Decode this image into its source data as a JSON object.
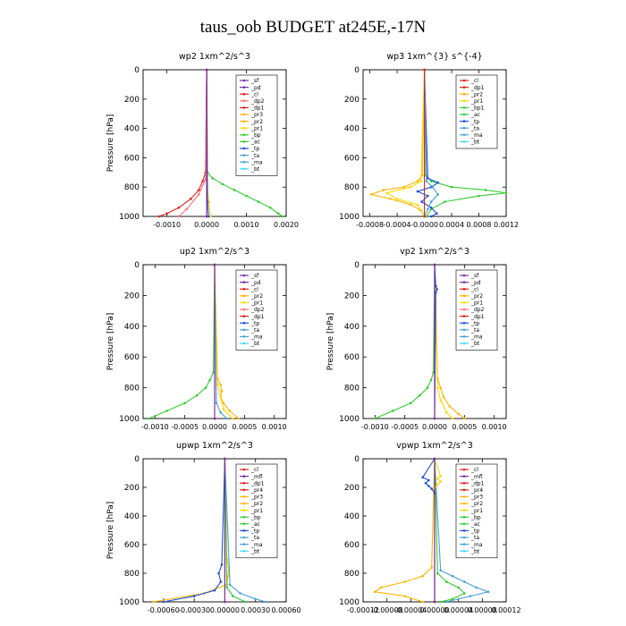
{
  "figure_title": "taus_oob  BUDGET at245E,-17N",
  "colors": {
    "sf": "#7a2ea6",
    "pd": "#7a2ea6",
    "cl": "#e0201a",
    "dp1": "#e0201a",
    "dp2": "#ff7070",
    "pr1": "#ffd700",
    "pr2": "#ffb300",
    "pr3": "#ffb300",
    "pr4": "#e0201a",
    "mt": "#7a2ea6",
    "bp": "#33cc33",
    "ac": "#33cc33",
    "tp": "#1e50d8",
    "ta": "#4aa0d8",
    "ma": "#4aa0d8",
    "bt": "#40d8ff"
  },
  "chart_data": [
    {
      "type": "line",
      "title": "wp2  1xm^2/s^3",
      "ylabel": "Pressure [hPa]",
      "ylim": [
        1000,
        0
      ],
      "yticks": [
        0,
        200,
        400,
        600,
        800,
        1000
      ],
      "xlim": [
        -0.0016,
        0.002
      ],
      "xticks": [
        "-0.0010",
        "0.0000",
        "0.0010",
        "0.0020"
      ],
      "xtick_values": [
        -0.001,
        0,
        0.001,
        0.002
      ],
      "legend": [
        "_sf",
        "_pd",
        "_cl",
        "_dp2",
        "_dp1",
        "_pr3",
        "_pr2",
        "_pr1",
        "_bp",
        "_ac",
        "_tp",
        "_ta",
        "_ma",
        "_bt"
      ],
      "legend_keys": [
        "sf",
        "pd",
        "cl",
        "dp2",
        "dp1",
        "pr3",
        "pr2",
        "pr1",
        "bp",
        "ac",
        "tp",
        "ta",
        "ma",
        "bt"
      ],
      "series": [
        {
          "key": "bp",
          "p": [
            0,
            700,
            740,
            780,
            820,
            860,
            900,
            940,
            980,
            1000
          ],
          "v": [
            0,
            2e-05,
            0.00015,
            0.0004,
            0.0007,
            0.001,
            0.0013,
            0.0016,
            0.0018,
            0.0019
          ]
        },
        {
          "key": "dp1",
          "p": [
            0,
            700,
            760,
            820,
            880,
            940,
            980,
            1000
          ],
          "v": [
            0,
            -3e-05,
            -0.0001,
            -0.0002,
            -0.0004,
            -0.0007,
            -0.001,
            -0.0012
          ]
        },
        {
          "key": "dp2",
          "p": [
            0,
            750,
            850,
            950,
            1000
          ],
          "v": [
            0,
            -3e-05,
            -0.0002,
            -0.0005,
            -0.0007
          ]
        },
        {
          "key": "pr1",
          "p": [
            0,
            800,
            900,
            1000
          ],
          "v": [
            0,
            2e-05,
            5e-05,
            0.0001
          ]
        },
        {
          "key": "tp",
          "p": [
            0,
            900,
            1000
          ],
          "v": [
            0,
            2e-05,
            5e-05
          ]
        },
        {
          "key": "cl",
          "p": [
            0,
            1000
          ],
          "v": [
            0,
            0
          ]
        },
        {
          "key": "sf",
          "p": [
            0,
            1000
          ],
          "v": [
            0,
            0
          ]
        }
      ]
    },
    {
      "type": "line",
      "title": "wp3  1xm^{3} s^{-4}",
      "ylabel": "",
      "ylim": [
        1000,
        0
      ],
      "yticks": [
        0,
        200,
        400,
        600,
        800,
        1000
      ],
      "xlim": [
        -0.0009,
        0.0012
      ],
      "xticks": [
        "-0.0008",
        "-0.0004",
        "-0.0000",
        "0.0004",
        "0.0008",
        "0.0012"
      ],
      "xtick_values": [
        -0.0008,
        -0.0004,
        0,
        0.0004,
        0.0008,
        0.0012
      ],
      "legend": [
        "_cl",
        "_dp1",
        "_pr2",
        "_pr1",
        "_bp1",
        "_ac",
        "_tp",
        "_ta",
        "_ma",
        "_bt"
      ],
      "legend_keys": [
        "cl",
        "dp1",
        "pr2",
        "pr1",
        "bp",
        "ac",
        "tp",
        "ta",
        "ma",
        "bt"
      ],
      "series": [
        {
          "key": "ac",
          "p": [
            0,
            720,
            760,
            800,
            820,
            840,
            860,
            900,
            950,
            1000
          ],
          "v": [
            0,
            2e-05,
            0.0001,
            0.0004,
            0.0009,
            0.0012,
            0.0008,
            0.0003,
            0.0001,
            3e-05
          ]
        },
        {
          "key": "pr2",
          "p": [
            0,
            720,
            760,
            800,
            820,
            850,
            880,
            920,
            960,
            1000
          ],
          "v": [
            0,
            -3e-05,
            -0.0001,
            -0.0003,
            -0.0006,
            -0.00078,
            -0.0005,
            -0.0002,
            -5e-05,
            0
          ]
        },
        {
          "key": "pr1",
          "p": [
            0,
            760,
            800,
            840,
            880,
            920,
            1000
          ],
          "v": [
            0,
            -5e-05,
            -0.0002,
            -0.00055,
            -0.0004,
            -0.0001,
            0
          ]
        },
        {
          "key": "tp",
          "p": [
            0,
            740,
            770,
            800,
            830,
            860,
            900,
            940,
            980,
            1000
          ],
          "v": [
            0,
            5e-05,
            0.0002,
            0.0001,
            -0.0001,
            5e-05,
            -4e-05,
            0.0001,
            0.00018,
            0.0001
          ]
        },
        {
          "key": "ma",
          "p": [
            0,
            760,
            800,
            850,
            900,
            950,
            1000
          ],
          "v": [
            0,
            3e-05,
            0.00012,
            0.0002,
            0.0001,
            5e-05,
            0
          ]
        },
        {
          "key": "cl",
          "p": [
            0,
            1000
          ],
          "v": [
            0,
            0
          ]
        }
      ]
    },
    {
      "type": "line",
      "title": "up2  1xm^2/s^3",
      "ylabel": "Pressure [hPa]",
      "ylim": [
        1000,
        0
      ],
      "yticks": [
        0,
        200,
        400,
        600,
        800,
        1000
      ],
      "xlim": [
        -0.0012,
        0.0012
      ],
      "xticks": [
        "-0.0010",
        "-0.0005",
        "0.0000",
        "0.0005",
        "0.0010"
      ],
      "xtick_values": [
        -0.001,
        -0.0005,
        0,
        0.0005,
        0.001
      ],
      "legend": [
        "_sf",
        "_pd",
        "_cl",
        "_pr2",
        "_pr1",
        "_dp2",
        "_dp1",
        "_tp",
        "_ta",
        "_ma",
        "_bt"
      ],
      "legend_keys": [
        "sf",
        "pd",
        "cl",
        "pr2",
        "pr1",
        "dp2",
        "dp1",
        "tp",
        "ta",
        "ma",
        "bt"
      ],
      "series": [
        {
          "key": "bp",
          "p": [
            0,
            700,
            750,
            800,
            850,
            900,
            950,
            1000
          ],
          "v": [
            0,
            -2e-05,
            -8e-05,
            -0.00015,
            -0.0003,
            -0.0005,
            -0.0008,
            -0.0011
          ]
        },
        {
          "key": "pr2",
          "p": [
            0,
            740,
            780,
            820,
            860,
            900,
            950,
            1000
          ],
          "v": [
            0,
            5e-05,
            0.0001,
            0.00012,
            0.0001,
            0.00015,
            0.00025,
            0.0004
          ]
        },
        {
          "key": "pr1",
          "p": [
            0,
            780,
            860,
            940,
            1000
          ],
          "v": [
            0,
            5e-05,
            0.0001,
            0.00015,
            0.0003
          ]
        },
        {
          "key": "ta",
          "p": [
            0,
            900,
            960,
            1000
          ],
          "v": [
            0,
            3e-05,
            0.0001,
            0.0002
          ]
        },
        {
          "key": "dp1",
          "p": [
            0,
            1000
          ],
          "v": [
            0,
            0
          ]
        },
        {
          "key": "sf",
          "p": [
            0,
            1000
          ],
          "v": [
            0,
            0
          ]
        }
      ]
    },
    {
      "type": "line",
      "title": "vp2  1xm^2/s^3",
      "ylabel": "Pressure [hPa]",
      "ylim": [
        1000,
        0
      ],
      "yticks": [
        0,
        200,
        400,
        600,
        800,
        1000
      ],
      "xlim": [
        -0.0012,
        0.0012
      ],
      "xticks": [
        "-0.0010",
        "-0.0005",
        "0.0000",
        "0.0005",
        "0.0010"
      ],
      "xtick_values": [
        -0.001,
        -0.0005,
        0,
        0.0005,
        0.001
      ],
      "legend": [
        "_sf",
        "_pd",
        "_cl",
        "_pr2",
        "_pr1",
        "_dp2",
        "_dp1",
        "_tp",
        "_ta",
        "_ma",
        "_bt"
      ],
      "legend_keys": [
        "sf",
        "pd",
        "cl",
        "pr2",
        "pr1",
        "dp2",
        "dp1",
        "tp",
        "ta",
        "ma",
        "bt"
      ],
      "series": [
        {
          "key": "bp",
          "p": [
            0,
            700,
            750,
            800,
            850,
            900,
            950,
            1000
          ],
          "v": [
            0,
            -2e-05,
            -6e-05,
            -0.00012,
            -0.00025,
            -0.0004,
            -0.0007,
            -0.001
          ]
        },
        {
          "key": "pr2",
          "p": [
            0,
            740,
            800,
            860,
            920,
            970,
            1000
          ],
          "v": [
            0,
            5e-05,
            0.0001,
            0.00015,
            0.00025,
            0.0004,
            0.0005
          ]
        },
        {
          "key": "pr1",
          "p": [
            0,
            800,
            880,
            960,
            1000
          ],
          "v": [
            0,
            5e-05,
            0.0001,
            0.0002,
            0.0003
          ]
        },
        {
          "key": "tp",
          "p": [
            0,
            140,
            160,
            180,
            1000
          ],
          "v": [
            0,
            2e-05,
            4e-05,
            2e-05,
            0
          ]
        },
        {
          "key": "dp1",
          "p": [
            0,
            1000
          ],
          "v": [
            0,
            0
          ]
        },
        {
          "key": "sf",
          "p": [
            0,
            1000
          ],
          "v": [
            0,
            0
          ]
        }
      ]
    },
    {
      "type": "line",
      "title": "upwp  1xm^2/s^3",
      "ylabel": "Pressure [hPa]",
      "ylim": [
        1000,
        0
      ],
      "yticks": [
        0,
        200,
        400,
        600,
        800,
        1000
      ],
      "xlim": [
        -0.0008,
        0.0006
      ],
      "xticks": [
        "-0.00060",
        "-0.00030",
        "0.00000",
        "0.00030",
        "0.00060"
      ],
      "xtick_values": [
        -0.0006,
        -0.0003,
        0,
        0.0003,
        0.0006
      ],
      "legend": [
        "_cl",
        "_mfl",
        "_dp1",
        "_pr4",
        "_pr3",
        "_pr2",
        "_pr1",
        "_bp",
        "_ac",
        "_tp",
        "_ta",
        "_ma",
        "_bt"
      ],
      "legend_keys": [
        "cl",
        "mt",
        "dp1",
        "pr4",
        "pr3",
        "pr2",
        "pr1",
        "bp",
        "ac",
        "tp",
        "ta",
        "ma",
        "bt"
      ],
      "series": [
        {
          "key": "pr2",
          "p": [
            0,
            700,
            760,
            820,
            880,
            940,
            1000
          ],
          "v": [
            0,
            2e-05,
            4e-05,
            3e-05,
            2e-05,
            -0.0002,
            -0.0007
          ]
        },
        {
          "key": "tp",
          "p": [
            0,
            740,
            800,
            860,
            920,
            960,
            1000
          ],
          "v": [
            0,
            -3e-05,
            -6e-05,
            -4e-05,
            -0.0001,
            -0.0003,
            -0.0006
          ]
        },
        {
          "key": "ta",
          "p": [
            0,
            880,
            940,
            980,
            1000
          ],
          "v": [
            0,
            5e-05,
            0.00015,
            0.0003,
            0.0004
          ]
        },
        {
          "key": "bp",
          "p": [
            0,
            900,
            960,
            1000
          ],
          "v": [
            0,
            2e-05,
            8e-05,
            0.0002
          ]
        },
        {
          "key": "cl",
          "p": [
            0,
            1000
          ],
          "v": [
            0,
            0
          ]
        },
        {
          "key": "sf",
          "p": [
            0,
            1000
          ],
          "v": [
            0,
            0
          ]
        }
      ]
    },
    {
      "type": "line",
      "title": "vpwp  1xm^2/s^3",
      "ylabel": "",
      "ylim": [
        1000,
        0
      ],
      "yticks": [
        0,
        200,
        400,
        600,
        800,
        1000
      ],
      "xlim": [
        -0.00012,
        0.00012
      ],
      "xticks": [
        "-0.00012",
        "-0.00008",
        "-0.00004",
        "0.00000",
        "0.00004",
        "0.00008",
        "0.00012"
      ],
      "xtick_values": [
        -0.00012,
        -8e-05,
        -4e-05,
        0,
        4e-05,
        8e-05,
        0.00012
      ],
      "legend": [
        "_cl",
        "_mfl",
        "_dp1",
        "_pr4",
        "_pr3",
        "_pr2",
        "_pr1",
        "_bp",
        "_ac",
        "_tp",
        "_ta",
        "_ma",
        "_bt"
      ],
      "legend_keys": [
        "cl",
        "mt",
        "dp1",
        "pr4",
        "pr3",
        "pr2",
        "pr1",
        "bp",
        "ac",
        "tp",
        "ta",
        "ma",
        "bt"
      ],
      "series": [
        {
          "key": "pr2",
          "p": [
            0,
            760,
            820,
            860,
            900,
            930,
            960,
            1000
          ],
          "v": [
            0,
            -5e-06,
            -2e-05,
            -5e-05,
            -9e-05,
            -0.0001,
            -5e-05,
            -2e-05
          ]
        },
        {
          "key": "ta",
          "p": [
            0,
            780,
            820,
            860,
            900,
            930,
            960,
            1000
          ],
          "v": [
            0,
            1e-05,
            3e-05,
            5e-05,
            7e-05,
            9e-05,
            6e-05,
            2e-05
          ]
        },
        {
          "key": "bp",
          "p": [
            0,
            800,
            860,
            900,
            940,
            980,
            1000
          ],
          "v": [
            0,
            5e-06,
            2e-05,
            4e-05,
            5e-05,
            3e-05,
            1e-05
          ]
        },
        {
          "key": "pr1",
          "p": [
            0,
            120,
            140,
            160,
            180,
            200,
            1000
          ],
          "v": [
            0,
            1e-05,
            5e-06,
            1e-05,
            5e-06,
            0,
            0
          ]
        },
        {
          "key": "tp",
          "p": [
            0,
            130,
            150,
            170,
            190,
            210,
            240,
            1000
          ],
          "v": [
            0,
            -2e-05,
            -1e-05,
            -1.5e-05,
            -1e-05,
            -5e-06,
            0,
            0
          ]
        },
        {
          "key": "cl",
          "p": [
            0,
            1000
          ],
          "v": [
            0,
            0
          ]
        },
        {
          "key": "sf",
          "p": [
            0,
            1000
          ],
          "v": [
            0,
            0
          ]
        }
      ]
    }
  ]
}
